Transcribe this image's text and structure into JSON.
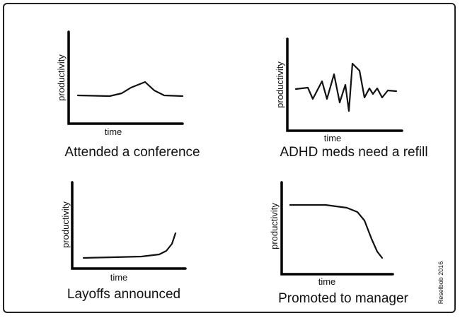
{
  "panels": [
    {
      "y_label": "productivity",
      "x_label": "time",
      "caption": "Attended a conference"
    },
    {
      "y_label": "productivity",
      "x_label": "time",
      "caption": "ADHD meds need a refill"
    },
    {
      "y_label": "productivity",
      "x_label": "time",
      "caption": "Layoffs announced"
    },
    {
      "y_label": "productivity",
      "x_label": "time",
      "caption": "Promoted to manager"
    }
  ],
  "signature": "Reselbob 2016"
}
